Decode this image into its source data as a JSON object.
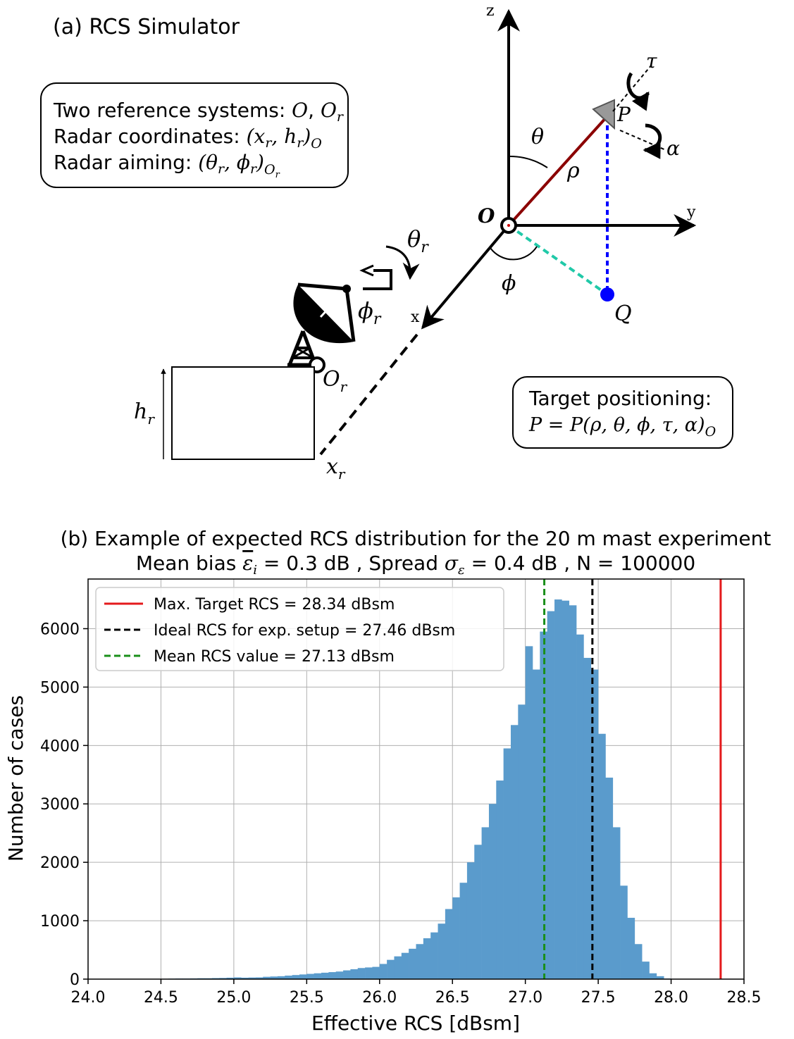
{
  "panel_a": {
    "title": "(a) RCS Simulator",
    "info_box": {
      "line1_text": "Two reference systems: ",
      "line1_math_o": "O",
      "line1_sep": ", ",
      "line1_math_or": "O",
      "line1_math_or_sub": "r",
      "line2_text": "Radar coordinates: ",
      "line2_math": "(x",
      "line2_sub1": "r",
      "line2_mid": ", h",
      "line2_sub2": "r",
      "line2_close": ")",
      "line2_sub3": "O",
      "line3_text": "Radar aiming: ",
      "line3_math": "(θ",
      "line3_sub1": "r",
      "line3_mid": ", ϕ",
      "line3_sub2": "r",
      "line3_close": ")",
      "line3_sub3": "O",
      "line3_sub4": "r"
    },
    "target_box": {
      "line1": "Target positioning:",
      "line2_math": "P = P(ρ, θ, ϕ, τ, α)",
      "line2_sub": "O"
    },
    "labels": {
      "z": "z",
      "y": "y",
      "x": "x",
      "origin": "O",
      "theta": "θ",
      "rho": "ρ",
      "phi": "ϕ",
      "p": "P",
      "q": "Q",
      "tau": "τ",
      "alpha": "α",
      "theta_r": "θ",
      "theta_r_sub": "r",
      "phi_r": "ϕ",
      "phi_r_sub": "r",
      "o_r": "O",
      "o_r_sub": "r",
      "h_r": "h",
      "h_r_sub": "r",
      "x_r": "x",
      "x_r_sub": "r"
    },
    "colors": {
      "rho_line": "#8b0000",
      "p_drop": "#0000ff",
      "q_proj": "#20c9a8",
      "q_point": "#0000ff",
      "target_marker": "#999999"
    }
  },
  "chart_data": {
    "type": "bar",
    "title_line1": "(b) Example of expected RCS distribution for the 20 m mast experiment",
    "title_line2_prefix": "Mean bias ",
    "title_line2_bias_symbol": "ε",
    "title_line2_bias_sub": "i",
    "title_line2_mid": " = 0.3 dB , Spread ",
    "title_line2_spread_symbol": "σ",
    "title_line2_spread_sub": "ε",
    "title_line2_suffix": " = 0.4 dB , N = 100000",
    "xlabel": "Effective RCS [dBsm]",
    "ylabel": "Number of cases",
    "xlim": [
      24.0,
      28.5
    ],
    "ylim": [
      0,
      6850
    ],
    "xticks": [
      "24.0",
      "24.5",
      "25.0",
      "25.5",
      "26.0",
      "26.5",
      "27.0",
      "27.5",
      "28.0",
      "28.5"
    ],
    "xtick_values": [
      24.0,
      24.5,
      25.0,
      25.5,
      26.0,
      26.5,
      27.0,
      27.5,
      28.0,
      28.5
    ],
    "yticks": [
      "0",
      "1000",
      "2000",
      "3000",
      "4000",
      "5000",
      "6000"
    ],
    "ytick_values": [
      0,
      1000,
      2000,
      3000,
      4000,
      5000,
      6000
    ],
    "grid": true,
    "bar_color": "#5a9bcc",
    "bin_width": 0.05,
    "bins_start": [
      24.45,
      24.5,
      24.55,
      24.6,
      24.65,
      24.7,
      24.75,
      24.8,
      24.85,
      24.9,
      24.95,
      25.0,
      25.05,
      25.1,
      25.15,
      25.2,
      25.25,
      25.3,
      25.35,
      25.4,
      25.45,
      25.5,
      25.55,
      25.6,
      25.65,
      25.7,
      25.75,
      25.8,
      25.85,
      25.9,
      25.95,
      26.0,
      26.05,
      26.1,
      26.15,
      26.2,
      26.25,
      26.3,
      26.35,
      26.4,
      26.45,
      26.5,
      26.55,
      26.6,
      26.65,
      26.7,
      26.75,
      26.8,
      26.85,
      26.9,
      26.95,
      27.0,
      27.05,
      27.1,
      27.15,
      27.2,
      27.25,
      27.3,
      27.35,
      27.4,
      27.45,
      27.5,
      27.55,
      27.6,
      27.65,
      27.7,
      27.75,
      27.8,
      27.85,
      27.9,
      27.95
    ],
    "counts": [
      5,
      5,
      8,
      10,
      10,
      12,
      15,
      15,
      18,
      20,
      25,
      30,
      25,
      28,
      30,
      40,
      45,
      50,
      60,
      70,
      80,
      90,
      100,
      110,
      120,
      130,
      150,
      170,
      190,
      200,
      210,
      260,
      330,
      390,
      450,
      520,
      600,
      700,
      800,
      950,
      1200,
      1400,
      1650,
      2000,
      2300,
      2600,
      3000,
      3400,
      3950,
      4350,
      4700,
      5700,
      5300,
      5950,
      6300,
      6500,
      6480,
      6400,
      5900,
      5500,
      5300,
      4200,
      3450,
      2600,
      1600,
      1050,
      600,
      300,
      100,
      50,
      10
    ],
    "vlines": [
      {
        "x": 28.34,
        "color": "#e41a1c",
        "style": "solid",
        "label": "Max. Target RCS = 28.34 dBsm"
      },
      {
        "x": 27.46,
        "color": "#000000",
        "style": "dashed",
        "label": "Ideal RCS for exp. setup = 27.46 dBsm"
      },
      {
        "x": 27.13,
        "color": "#1a8f1a",
        "style": "dashed",
        "label": "Mean RCS value = 27.13 dBsm"
      }
    ],
    "legend_position": "top-left"
  }
}
